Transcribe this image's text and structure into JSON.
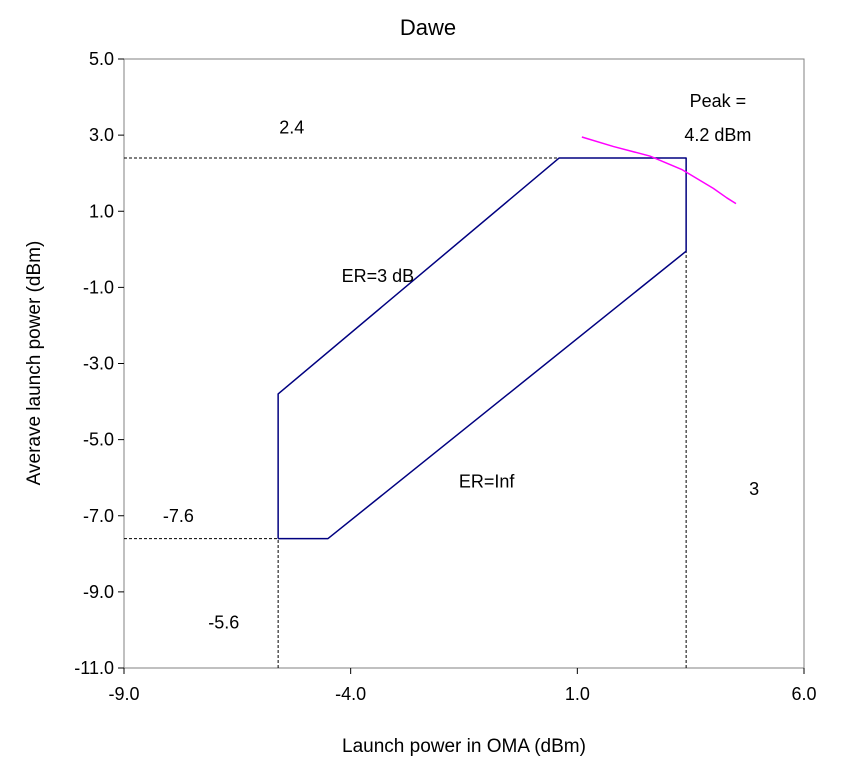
{
  "chart_data": {
    "type": "line",
    "title": "Dawe",
    "xlabel": "Launch power in OMA (dBm)",
    "ylabel": "Averave launch power (dBm)",
    "xlim": [
      -9.0,
      6.0
    ],
    "ylim": [
      -11.0,
      5.0
    ],
    "xticks": [
      "-9.0",
      "-4.0",
      "1.0",
      "6.0"
    ],
    "yticks": [
      "5.0",
      "3.0",
      "1.0",
      "-1.0",
      "-3.0",
      "-5.0",
      "-7.0",
      "-9.0",
      "-11.0"
    ],
    "grid": false,
    "series": [
      {
        "color": "#000080",
        "x": [
          -5.6,
          -4.5,
          3.4,
          3.4,
          0.6,
          -5.6,
          -5.6
        ],
        "y": [
          -7.6,
          -7.6,
          -0.05,
          2.4,
          2.4,
          -3.8,
          -7.6
        ]
      },
      {
        "color": "#ff00ff",
        "x": [
          1.1,
          1.8,
          2.6,
          3.3,
          4.0,
          4.3,
          4.5
        ],
        "y": [
          2.95,
          2.7,
          2.45,
          2.1,
          1.6,
          1.35,
          1.2
        ]
      }
    ],
    "reference_lines": [
      {
        "x": [
          -9.0,
          0.6
        ],
        "y": [
          2.4,
          2.4
        ]
      },
      {
        "x": [
          -9.0,
          -5.6
        ],
        "y": [
          -7.6,
          -7.6
        ]
      },
      {
        "x": [
          -5.6,
          -5.6
        ],
        "y": [
          -11.0,
          -7.6
        ]
      },
      {
        "x": [
          3.4,
          3.4
        ],
        "y": [
          -11.0,
          -0.05
        ]
      }
    ],
    "annotations": [
      {
        "text": "2.4",
        "x": -5.3,
        "y": 3.2
      },
      {
        "text": "ER=3 dB",
        "x": -3.4,
        "y": -0.7
      },
      {
        "text": "ER=Inf",
        "x": -1.0,
        "y": -6.1
      },
      {
        "text": "-7.6",
        "x": -7.8,
        "y": -7.0
      },
      {
        "text": "-5.6",
        "x": -6.8,
        "y": -9.8
      },
      {
        "text": "3",
        "x": 4.9,
        "y": -6.3
      },
      {
        "text": "Peak =",
        "x": 4.1,
        "y": 3.9
      },
      {
        "text": "4.2 dBm",
        "x": 4.1,
        "y": 3.0
      }
    ]
  }
}
